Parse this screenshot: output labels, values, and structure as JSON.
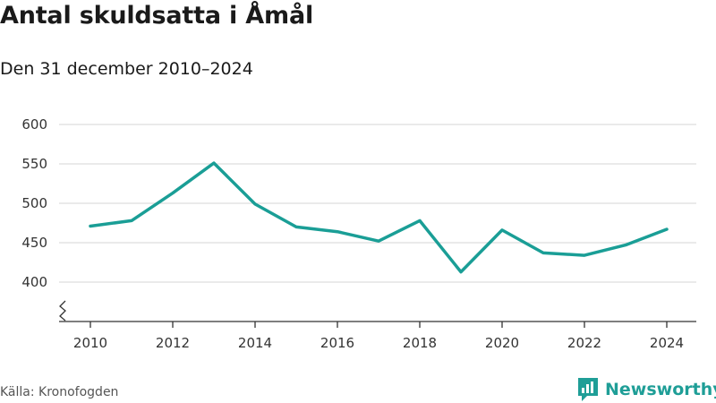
{
  "header": {
    "title": "Antal skuldsatta i Åmål",
    "subtitle": "Den 31 december 2010–2024"
  },
  "footer": {
    "source": "Källa: Kronofogden",
    "brand": "Newsworthy"
  },
  "colors": {
    "line": "#1a9e96",
    "grid": "#dddddd",
    "axis": "#333333",
    "brand": "#1f9e97"
  },
  "icons": {
    "brand_logo": "bar-chart-speech-bubble-icon",
    "axis_break": "zigzag-axis-break-icon"
  },
  "chart_data": {
    "type": "line",
    "title": "Antal skuldsatta i Åmål",
    "subtitle": "Den 31 december 2010–2024",
    "xlabel": "",
    "ylabel": "",
    "x": [
      2010,
      2011,
      2012,
      2013,
      2014,
      2015,
      2016,
      2017,
      2018,
      2019,
      2020,
      2021,
      2022,
      2023,
      2024
    ],
    "series": [
      {
        "values": [
          471,
          478,
          513,
          551,
          499,
          470,
          464,
          452,
          478,
          413,
          466,
          437,
          434,
          447,
          467
        ]
      }
    ],
    "xticks": [
      "2010",
      "2012",
      "2014",
      "2016",
      "2018",
      "2020",
      "2022",
      "2024"
    ],
    "yticks": [
      "400",
      "450",
      "500",
      "550",
      "600"
    ],
    "xlim": [
      2010,
      2024
    ],
    "ylim": [
      400,
      600
    ],
    "y_axis_break": true,
    "grid": "horizontal",
    "legend": "none"
  }
}
